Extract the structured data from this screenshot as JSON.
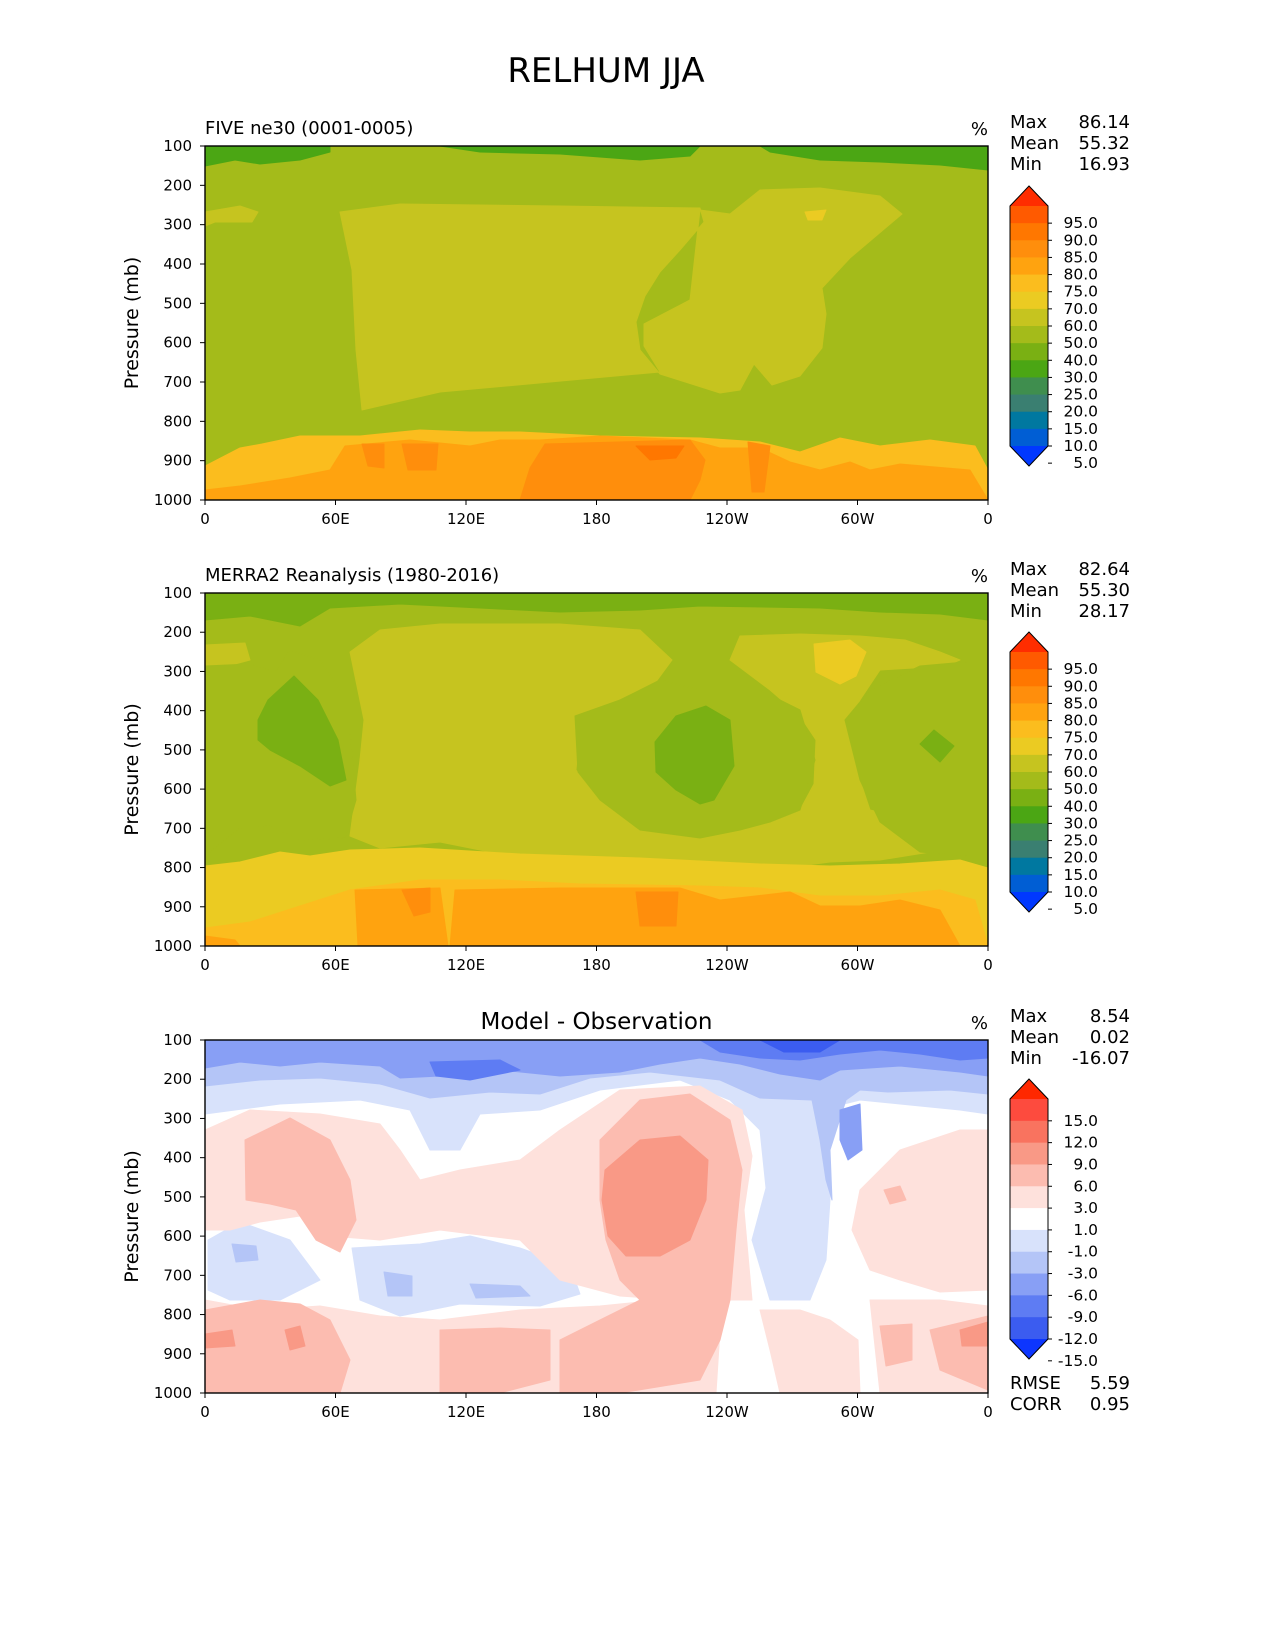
{
  "figure_title": "RELHUM JJA",
  "chart_data": [
    {
      "type": "heatmap",
      "title": "FIVE ne30 (0001-0005)",
      "units": "%",
      "ylabel": "Pressure (mb)",
      "xlabel": "",
      "x_ticks": [
        "0",
        "60E",
        "120E",
        "180",
        "120W",
        "60W",
        "0"
      ],
      "y_ticks": [
        "100",
        "200",
        "300",
        "400",
        "500",
        "600",
        "700",
        "800",
        "900",
        "1000"
      ],
      "x_range": [
        0,
        360
      ],
      "y_range": [
        100,
        1000
      ],
      "stats": [
        {
          "label": "Max",
          "value": "86.14"
        },
        {
          "label": "Mean",
          "value": "55.32"
        },
        {
          "label": "Min",
          "value": "16.93"
        }
      ],
      "colorbar": {
        "levels": [
          "95.0",
          "90.0",
          "85.0",
          "80.0",
          "75.0",
          "70.0",
          "60.0",
          "50.0",
          "40.0",
          "30.0",
          "25.0",
          "20.0",
          "15.0",
          "10.0",
          "5.0"
        ],
        "colors": [
          "#ff2d00",
          "#ff5a00",
          "#ff7700",
          "#ff8e0c",
          "#ffa30f",
          "#fbbd1e",
          "#ebcb22",
          "#c6c41f",
          "#a4bb1a",
          "#7ab013",
          "#4ba614",
          "#3f8e4e",
          "#3a7f71",
          "#0078a0",
          "#005ed4",
          "#0038ff"
        ]
      },
      "contours": [
        {
          "value": 30,
          "color": "#4ba614",
          "shapes": [
            "M205,146 L330,146 L330,152 L300,160 L260,164 L235,160 L205,166 Z",
            "M440,146 L700,146 L690,156 L640,160 L560,154 L480,152 Z",
            "M760,146 L988,146 L988,170 L940,165 L880,162 L820,160 L770,152 Z"
          ]
        },
        {
          "value": 50,
          "color": "#c6c41f",
          "shapes": [
            "M340,212 L400,204 L560,206 L700,208 L704,222 L680,250 L660,272 L645,296 L636,322 L640,350 L660,374 L720,393 L740,390 L754,364 L772,385 L800,376 L822,348 L826,314 L822,288 L850,258 L902,214 L880,196 L820,188 L760,190 L730,214 L700,210 L690,300 L644,324 L644,346 L660,372 L440,392 L362,410 L356,350 L352,270 Z",
            "M205,212 L240,206 L258,212 L252,222 L215,222 L205,226 Z"
          ]
        },
        {
          "value": 70,
          "color": "#fbbd1e",
          "shapes": [
            "M205,466 L240,448 L262,444 L300,436 L360,436 L420,430 L470,432 L520,432 L600,436 L700,438 L760,442 L800,452 L840,438 L880,446 L930,440 L975,446 L988,470 L988,500 L205,500 Z"
          ]
        },
        {
          "value": 75,
          "color": "#ffa30f",
          "shapes": [
            "M205,490 L240,486 L290,478 L330,470 L345,446 L410,440 L470,446 L500,440 L540,440 L600,436 L690,440 L720,448 L760,448 L790,462 L820,470 L850,462 L870,470 L900,464 L970,470 L988,500 L205,500 Z"
          ]
        },
        {
          "value": 80,
          "color": "#ff8e0c",
          "shapes": [
            "M545,444 L690,440 L705,460 L700,480 L690,500 L520,500 L530,468 Z",
            "M362,444 L384,444 L384,468 L368,466 Z",
            "M402,444 L438,444 L436,470 L408,470 Z",
            "M748,442 L770,446 L764,492 L752,492 Z"
          ]
        },
        {
          "value": 85,
          "color": "#ff7700",
          "shapes": [
            "M636,446 L684,446 L676,458 L650,460 Z"
          ]
        },
        {
          "value": 60,
          "color": "#ebcb22",
          "shapes": [
            "M805,212 L826,210 L822,220 L808,220 Z"
          ]
        }
      ],
      "base_color": "#a4bb1a"
    },
    {
      "type": "heatmap",
      "title": "MERRA2 Reanalysis (1980-2016)",
      "units": "%",
      "ylabel": "Pressure (mb)",
      "xlabel": "",
      "x_ticks": [
        "0",
        "60E",
        "120E",
        "180",
        "120W",
        "60W",
        "0"
      ],
      "y_ticks": [
        "100",
        "200",
        "300",
        "400",
        "500",
        "600",
        "700",
        "800",
        "900",
        "1000"
      ],
      "x_range": [
        0,
        360
      ],
      "y_range": [
        100,
        1000
      ],
      "stats": [
        {
          "label": "Max",
          "value": "82.64"
        },
        {
          "label": "Mean",
          "value": "55.30"
        },
        {
          "label": "Min",
          "value": "28.17"
        }
      ],
      "colorbar": {
        "levels": [
          "95.0",
          "90.0",
          "85.0",
          "80.0",
          "75.0",
          "70.0",
          "60.0",
          "50.0",
          "40.0",
          "30.0",
          "25.0",
          "20.0",
          "15.0",
          "10.0",
          "5.0"
        ],
        "colors": [
          "#ff2d00",
          "#ff5a00",
          "#ff7700",
          "#ff8e0c",
          "#ffa30f",
          "#fbbd1e",
          "#ebcb22",
          "#c6c41f",
          "#a4bb1a",
          "#7ab013",
          "#4ba614",
          "#3f8e4e",
          "#3a7f71",
          "#0078a0",
          "#005ed4",
          "#0038ff"
        ]
      },
      "contours": [
        {
          "value": 40,
          "color": "#7ab013",
          "shapes": [
            "M205,593 L988,593 L988,620 L940,614 L880,612 L820,608 L700,606 L640,610 L560,612 L480,608 L400,604 L330,608 L300,626 L250,616 L205,620 Z"
          ]
        },
        {
          "value": 50,
          "color": "#c6c41f",
          "shapes": [
            "M350,652 L380,630 L440,624 L560,624 L640,630 L672,660 L650,690 L600,716 L578,746 L576,770 L600,800 L640,830 L700,838 L740,830 L770,820 L800,810 L814,784 L816,740 L800,716 L770,690 L730,660 L740,636 L800,634 L860,636 L905,640 L940,652 L960,660 L945,666 L880,670 L860,700 L850,722 L860,780 L870,810 L905,818 L940,830 L960,845 L930,852 L880,860 L830,862 L800,866 L760,864 L700,862 L600,858 L500,854 L440,842 L380,848 L350,836 L360,760 L364,720 Z",
            "M205,645 L245,643 L250,660 L220,668 L205,666 Z"
          ]
        },
        {
          "value": 40,
          "color": "#a4bb1a",
          "shapes": [
            "M205,666 L250,664 L275,672 L290,650 L320,660 L340,690 L350,730 L356,800 L345,838 L300,840 L270,826 L240,828 L210,852 L205,850 Z",
            "M575,716 L620,700 L660,680 L700,690 L760,690 L800,710 L815,760 L800,810 L770,822 L740,830 L700,838 L640,830 L600,800 L578,772 Z",
            "M845,720 L870,690 L920,666 L988,660 L988,858 L920,852 L880,822 L860,780 Z"
          ]
        },
        {
          "value": 30,
          "color": "#7ab013",
          "shapes": [
            "M258,720 L268,700 L294,676 L318,700 L338,740 L346,780 L330,786 L300,766 L270,750 L258,740 Z",
            "M655,742 L676,716 L706,706 L730,720 L734,766 L714,800 L700,804 L676,790 L656,772 Z",
            "M920,744 L934,730 L954,746 L940,762 Z"
          ]
        },
        {
          "value": 60,
          "color": "#ebcb22",
          "shapes": [
            "M205,866 L240,862 L280,852 L310,856 L350,850 L420,848 L520,854 L640,858 L760,864 L830,866 L900,864 L960,860 L988,868 L988,946 L205,946 Z",
            "M814,644 L850,640 L866,652 L856,676 L840,684 L816,672 Z"
          ]
        },
        {
          "value": 70,
          "color": "#fbbd1e",
          "shapes": [
            "M205,928 L250,922 L300,906 L350,890 L420,880 L500,880 L580,884 L700,886 L760,888 L820,896 L880,896 L940,890 L975,900 L988,946 L205,946 Z"
          ]
        },
        {
          "value": 75,
          "color": "#ffa30f",
          "shapes": [
            "M355,890 L440,888 L448,946 L358,946 Z",
            "M455,890 L560,888 L680,888 L720,900 L790,892 L820,906 L860,906 L900,900 L940,910 L960,946 L450,946 Z",
            "M205,946 L205,936 L235,940 L240,946 Z"
          ]
        },
        {
          "value": 80,
          "color": "#ff8e0c",
          "shapes": [
            "M636,892 L678,892 L676,926 L640,926 Z",
            "M402,890 L430,888 L430,912 L414,916 Z"
          ]
        }
      ],
      "base_color": "#a4bb1a"
    },
    {
      "type": "heatmap",
      "title": "Model - Observation",
      "units": "%",
      "ylabel": "Pressure (mb)",
      "xlabel": "",
      "x_ticks": [
        "0",
        "60E",
        "120E",
        "180",
        "120W",
        "60W",
        "0"
      ],
      "y_ticks": [
        "100",
        "200",
        "300",
        "400",
        "500",
        "600",
        "700",
        "800",
        "900",
        "1000"
      ],
      "x_range": [
        0,
        360
      ],
      "y_range": [
        100,
        1000
      ],
      "stats": [
        {
          "label": "Max",
          "value": "8.54"
        },
        {
          "label": "Mean",
          "value": "0.02"
        },
        {
          "label": "Min",
          "value": "-16.07"
        }
      ],
      "extra_stats": [
        {
          "label": "RMSE",
          "value": "5.59"
        },
        {
          "label": "CORR",
          "value": "0.95"
        }
      ],
      "colorbar": {
        "levels": [
          "15.0",
          "12.0",
          "9.0",
          "6.0",
          "3.0",
          "1.0",
          "-1.0",
          "-3.0",
          "-6.0",
          "-9.0",
          "-12.0",
          "-15.0"
        ],
        "colors": [
          "#ff2800",
          "#fd4b3e",
          "#f9735f",
          "#f99986",
          "#fcbcb0",
          "#fee1dc",
          "#ffffff",
          "#d8e2fb",
          "#b4c5f7",
          "#889ff5",
          "#5e7cf3",
          "#3b5cf0",
          "#0d36fe"
        ]
      },
      "contours": [
        {
          "value": -1,
          "color": "#d8e2fb",
          "shapes": [
            "M205,1040 L988,1040 L988,1114 L960,1110 L900,1104 L860,1100 L836,1106 L828,1150 L830,1200 L826,1260 L810,1300 L770,1300 L752,1240 L766,1188 L760,1130 L730,1100 L680,1080 L600,1090 L540,1110 L480,1114 L460,1150 L430,1150 L410,1110 L360,1100 L280,1104 L250,1108 L220,1112 L205,1114 Z",
            "M208,1240 L240,1222 L290,1240 L320,1280 L280,1300 L230,1300 L208,1290 Z",
            "M352,1248 L420,1244 L470,1236 L520,1248 L570,1266 L580,1294 L540,1306 L460,1304 L400,1316 L360,1300 Z",
            "M235,1372 L280,1376 L296,1393 L230,1393 Z"
          ]
        },
        {
          "value": -3,
          "color": "#b4c5f7",
          "shapes": [
            "M205,1040 L988,1040 L988,1094 L950,1090 L888,1092 L860,1090 L846,1100 L830,1150 L832,1200 L826,1180 L820,1140 L812,1100 L760,1098 L720,1080 L650,1072 L590,1078 L540,1094 L490,1092 L430,1098 L380,1084 L320,1078 L260,1080 L205,1086 Z",
            "M232,1244 L256,1246 L258,1260 L236,1262 Z",
            "M384,1272 L412,1276 L412,1296 L388,1296 Z",
            "M470,1284 L520,1286 L530,1296 L476,1298 Z"
          ]
        },
        {
          "value": -6,
          "color": "#889ff5",
          "shapes": [
            "M205,1040 L988,1040 L988,1076 L960,1072 L900,1066 L840,1070 L820,1080 L780,1074 L740,1064 L700,1058 L660,1064 L620,1072 L560,1076 L500,1070 L440,1076 L400,1078 L380,1066 L320,1062 L280,1066 L240,1062 L205,1068 Z",
            "M840,1110 L860,1104 L862,1150 L848,1160 L840,1140 Z"
          ]
        },
        {
          "value": -9,
          "color": "#5e7cf3",
          "shapes": [
            "M700,1040 L988,1040 L988,1058 L960,1060 L920,1054 L880,1050 L840,1054 L800,1060 L760,1058 L720,1052 Z",
            "M430,1062 L500,1060 L520,1070 L470,1080 L436,1076 Z"
          ]
        },
        {
          "value": -12,
          "color": "#3b5cf0",
          "shapes": [
            "M760,1040 L840,1040 L820,1052 L784,1052 Z"
          ]
        },
        {
          "value": 1,
          "color": "#fee1dc",
          "shapes": [
            "M205,1130 L250,1110 L320,1114 L380,1124 L400,1150 L420,1180 L460,1170 L520,1160 L560,1130 L620,1090 L700,1086 L742,1110 L752,1156 L744,1210 L752,1300 L720,1300 L680,1300 L620,1296 L560,1280 L520,1240 L440,1230 L380,1240 L330,1236 L300,1216 L260,1222 L230,1230 L205,1230 Z",
            "M860,1190 L900,1150 L960,1130 L988,1130 L988,1290 L940,1292 L900,1280 L870,1270 L852,1230 Z",
            "M205,1300 L260,1310 L320,1306 L380,1316 L440,1320 L520,1310 L600,1306 L660,1300 L700,1310 L720,1330 L716,1393 L205,1393 Z",
            "M760,1310 L800,1310 L830,1320 L858,1340 L860,1393 L780,1393 L770,1350 Z",
            "M870,1300 L940,1300 L988,1306 L988,1393 L880,1393 Z"
          ]
        },
        {
          "value": 3,
          "color": "#fcbcb0",
          "shapes": [
            "M245,1140 L290,1118 L330,1140 L350,1180 L356,1220 L340,1252 L316,1240 L296,1210 L270,1204 L246,1200 Z",
            "M600,1140 L640,1100 L690,1094 L730,1120 L742,1170 L736,1230 L730,1300 L720,1340 L700,1380 L620,1393 L560,1393 L560,1340 L600,1320 L640,1300 L620,1280 L606,1240 L600,1200 Z",
            "M884,1190 L900,1186 L906,1200 L890,1204 Z",
            "M205,1310 L260,1300 L300,1304 L330,1320 L350,1360 L340,1393 L205,1393 Z",
            "M440,1330 L500,1328 L550,1330 L550,1380 L500,1393 L440,1393 Z",
            "M880,1326 L912,1324 L912,1360 L886,1366 Z",
            "M930,1330 L988,1316 L988,1390 L940,1370 Z"
          ]
        },
        {
          "value": 6,
          "color": "#f99986",
          "shapes": [
            "M605,1170 L640,1140 L680,1136 L708,1160 L706,1200 L690,1240 L660,1256 L626,1256 L608,1236 L602,1200 Z",
            "M205,1334 L232,1330 L235,1346 L205,1348 Z",
            "M285,1330 L300,1326 L305,1346 L290,1350 Z",
            "M960,1330 L988,1322 L988,1346 L962,1346 Z"
          ]
        }
      ],
      "base_color": "#ffffff"
    }
  ]
}
